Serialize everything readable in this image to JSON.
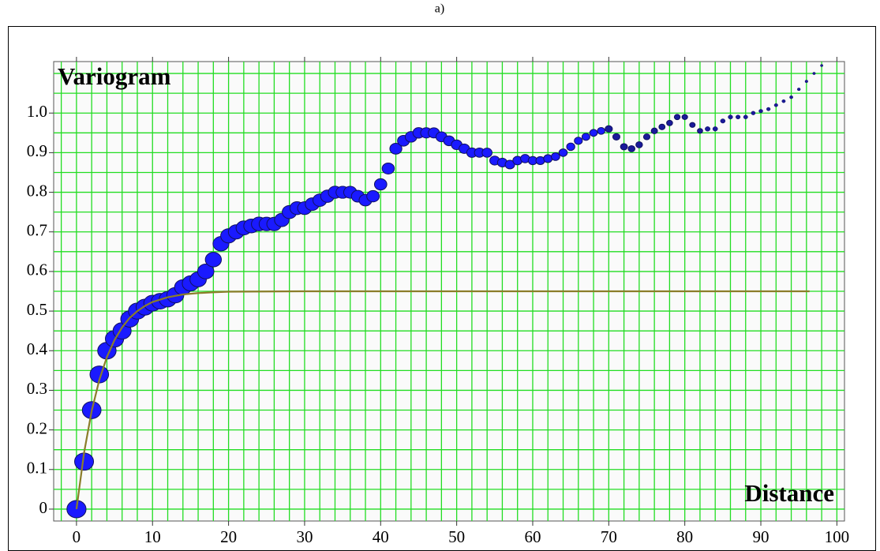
{
  "caption": "a)",
  "chart_data": {
    "type": "scatter",
    "xlabel": "Distance",
    "ylabel": "Variogram",
    "xlim": [
      -3,
      101
    ],
    "ylim": [
      -0.03,
      1.13
    ],
    "xticks": [
      0,
      10,
      20,
      30,
      40,
      50,
      60,
      70,
      80,
      90,
      100
    ],
    "yticks": [
      0,
      0.1,
      0.2,
      0.3,
      0.4,
      0.5,
      0.6,
      0.7,
      0.8,
      0.9,
      {
        "value": 1,
        "label": "1.0"
      }
    ],
    "grid": true,
    "xgrid_step": 2,
    "ygrid_step": 0.05,
    "grid_color": "#22dd22",
    "series": [
      {
        "color": "#1a1aff",
        "x": [
          0,
          1,
          2,
          3,
          4,
          5,
          6,
          7,
          8,
          9,
          10,
          11,
          12,
          13,
          14,
          15,
          16,
          17,
          18,
          19,
          20,
          21,
          22,
          23,
          24,
          25,
          26,
          27,
          28,
          29,
          30,
          31,
          32,
          33,
          34,
          35,
          36,
          37,
          38,
          39,
          40,
          41,
          42,
          43,
          44,
          45,
          46,
          47,
          48,
          49,
          50,
          51,
          52,
          53,
          54,
          55,
          56,
          57,
          58,
          59,
          60,
          61,
          62,
          63,
          64,
          65,
          66,
          67,
          68,
          69,
          70,
          71,
          72,
          73,
          74,
          75,
          76,
          77,
          78,
          79,
          80,
          81,
          82,
          83,
          84,
          85,
          86,
          87,
          88,
          89,
          90,
          91,
          92,
          93,
          94,
          95,
          96,
          97,
          98
        ],
        "values": [
          0,
          0.12,
          0.25,
          0.34,
          0.4,
          0.43,
          0.45,
          0.48,
          0.5,
          0.51,
          0.52,
          0.525,
          0.53,
          0.54,
          0.56,
          0.57,
          0.58,
          0.6,
          0.63,
          0.67,
          0.69,
          0.7,
          0.71,
          0.715,
          0.72,
          0.72,
          0.72,
          0.73,
          0.75,
          0.76,
          0.76,
          0.77,
          0.78,
          0.79,
          0.8,
          0.8,
          0.8,
          0.79,
          0.78,
          0.79,
          0.82,
          0.86,
          0.91,
          0.93,
          0.94,
          0.95,
          0.95,
          0.95,
          0.94,
          0.93,
          0.92,
          0.91,
          0.9,
          0.9,
          0.9,
          0.88,
          0.875,
          0.87,
          0.88,
          0.885,
          0.88,
          0.88,
          0.885,
          0.89,
          0.9,
          0.915,
          0.93,
          0.94,
          0.95,
          0.955,
          0.96,
          0.94,
          0.915,
          0.91,
          0.92,
          0.94,
          0.955,
          0.965,
          0.975,
          0.99,
          0.99,
          0.97,
          0.955,
          0.96,
          0.96,
          0.98,
          0.99,
          0.99,
          0.99,
          1.0,
          1.005,
          1.01,
          1.02,
          1.03,
          1.04,
          1.06,
          1.08,
          1.1,
          1.12
        ]
      },
      {
        "type": "line",
        "color": "#8b7d2a",
        "x": [
          0,
          1,
          2,
          3,
          4,
          5,
          6,
          7,
          8,
          9,
          10,
          12,
          14,
          16,
          18,
          20,
          30,
          96.4
        ],
        "values": [
          0,
          0.1425,
          0.248,
          0.326,
          0.384,
          0.427,
          0.459,
          0.483,
          0.5,
          0.513,
          0.523,
          0.535,
          0.542,
          0.5455,
          0.5475,
          0.549,
          0.55,
          0.55
        ]
      }
    ]
  }
}
